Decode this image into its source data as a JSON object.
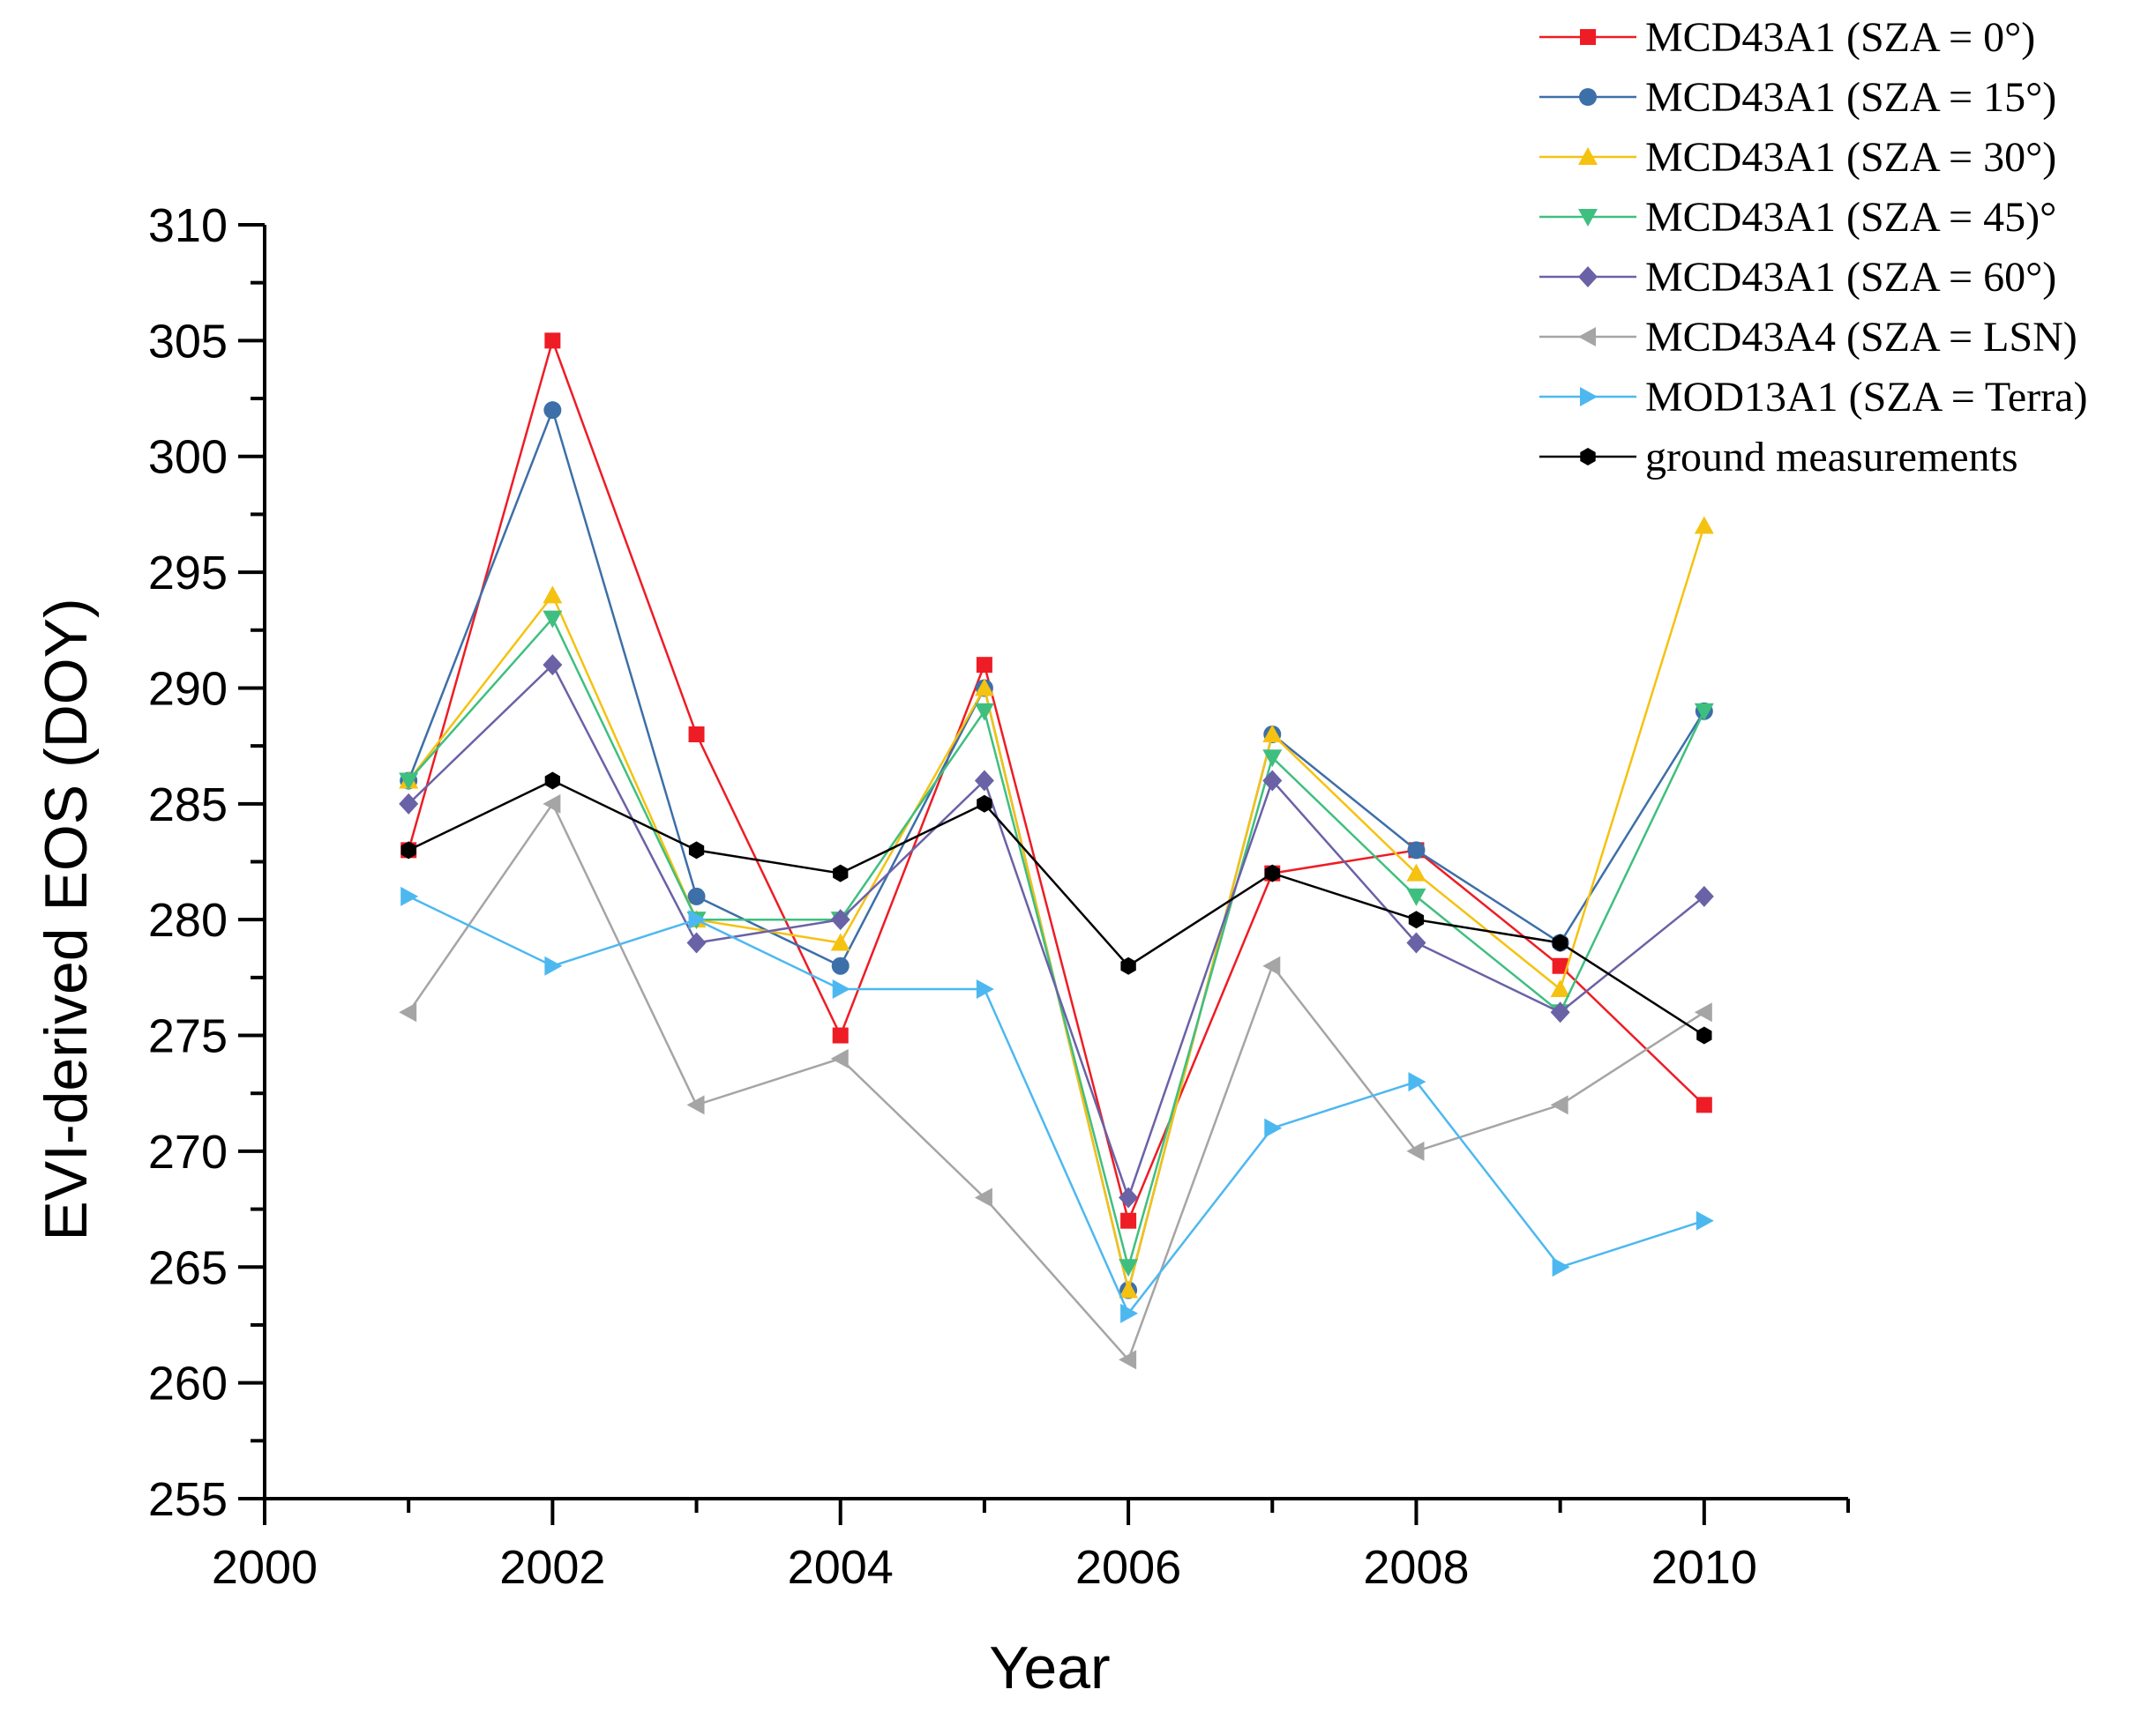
{
  "chart_data": {
    "type": "line",
    "title": "",
    "xlabel": "Year",
    "ylabel": "EVI-derived EOS (DOY)",
    "xlim": [
      2000,
      2011
    ],
    "ylim": [
      255,
      310
    ],
    "xticks": [
      2000,
      2002,
      2004,
      2006,
      2008,
      2010
    ],
    "yticks": [
      255,
      260,
      265,
      270,
      275,
      280,
      285,
      290,
      295,
      300,
      305,
      310
    ],
    "grid": false,
    "legend_position": "top-right",
    "x": [
      2001,
      2002,
      2003,
      2004,
      2005,
      2006,
      2007,
      2008,
      2009,
      2010
    ],
    "series": [
      {
        "name": "MCD43A1 (SZA = 0°)",
        "color": "#ee1c25",
        "marker": "square",
        "values": [
          283,
          305,
          288,
          275,
          291,
          267,
          282,
          283,
          278,
          272
        ]
      },
      {
        "name": "MCD43A1 (SZA = 15°)",
        "color": "#3d6fa8",
        "marker": "circle",
        "values": [
          286,
          302,
          281,
          278,
          290,
          264,
          288,
          283,
          279,
          289
        ]
      },
      {
        "name": "MCD43A1 (SZA = 30°)",
        "color": "#f5c211",
        "marker": "triangle-up",
        "values": [
          286,
          294,
          280,
          279,
          290,
          264,
          288,
          282,
          277,
          297
        ]
      },
      {
        "name": "MCD43A1 (SZA = 45)°",
        "color": "#3fbf7f",
        "marker": "triangle-down",
        "values": [
          286,
          293,
          280,
          280,
          289,
          265,
          287,
          281,
          276,
          289
        ]
      },
      {
        "name": "MCD43A1 (SZA = 60°)",
        "color": "#6a62a6",
        "marker": "diamond",
        "values": [
          285,
          291,
          279,
          280,
          286,
          268,
          286,
          279,
          276,
          281
        ]
      },
      {
        "name": "MCD43A4 (SZA = LSN)",
        "color": "#a5a5a5",
        "marker": "triangle-left",
        "values": [
          276,
          285,
          272,
          274,
          268,
          261,
          278,
          270,
          272,
          276
        ]
      },
      {
        "name": "MOD13A1 (SZA = Terra)",
        "color": "#4db8f0",
        "marker": "triangle-right",
        "values": [
          281,
          278,
          280,
          277,
          277,
          263,
          271,
          273,
          265,
          267
        ]
      },
      {
        "name": "ground measurements",
        "color": "#000000",
        "marker": "hexagon",
        "values": [
          283,
          286,
          283,
          282,
          285,
          278,
          282,
          280,
          279,
          275
        ]
      }
    ]
  }
}
